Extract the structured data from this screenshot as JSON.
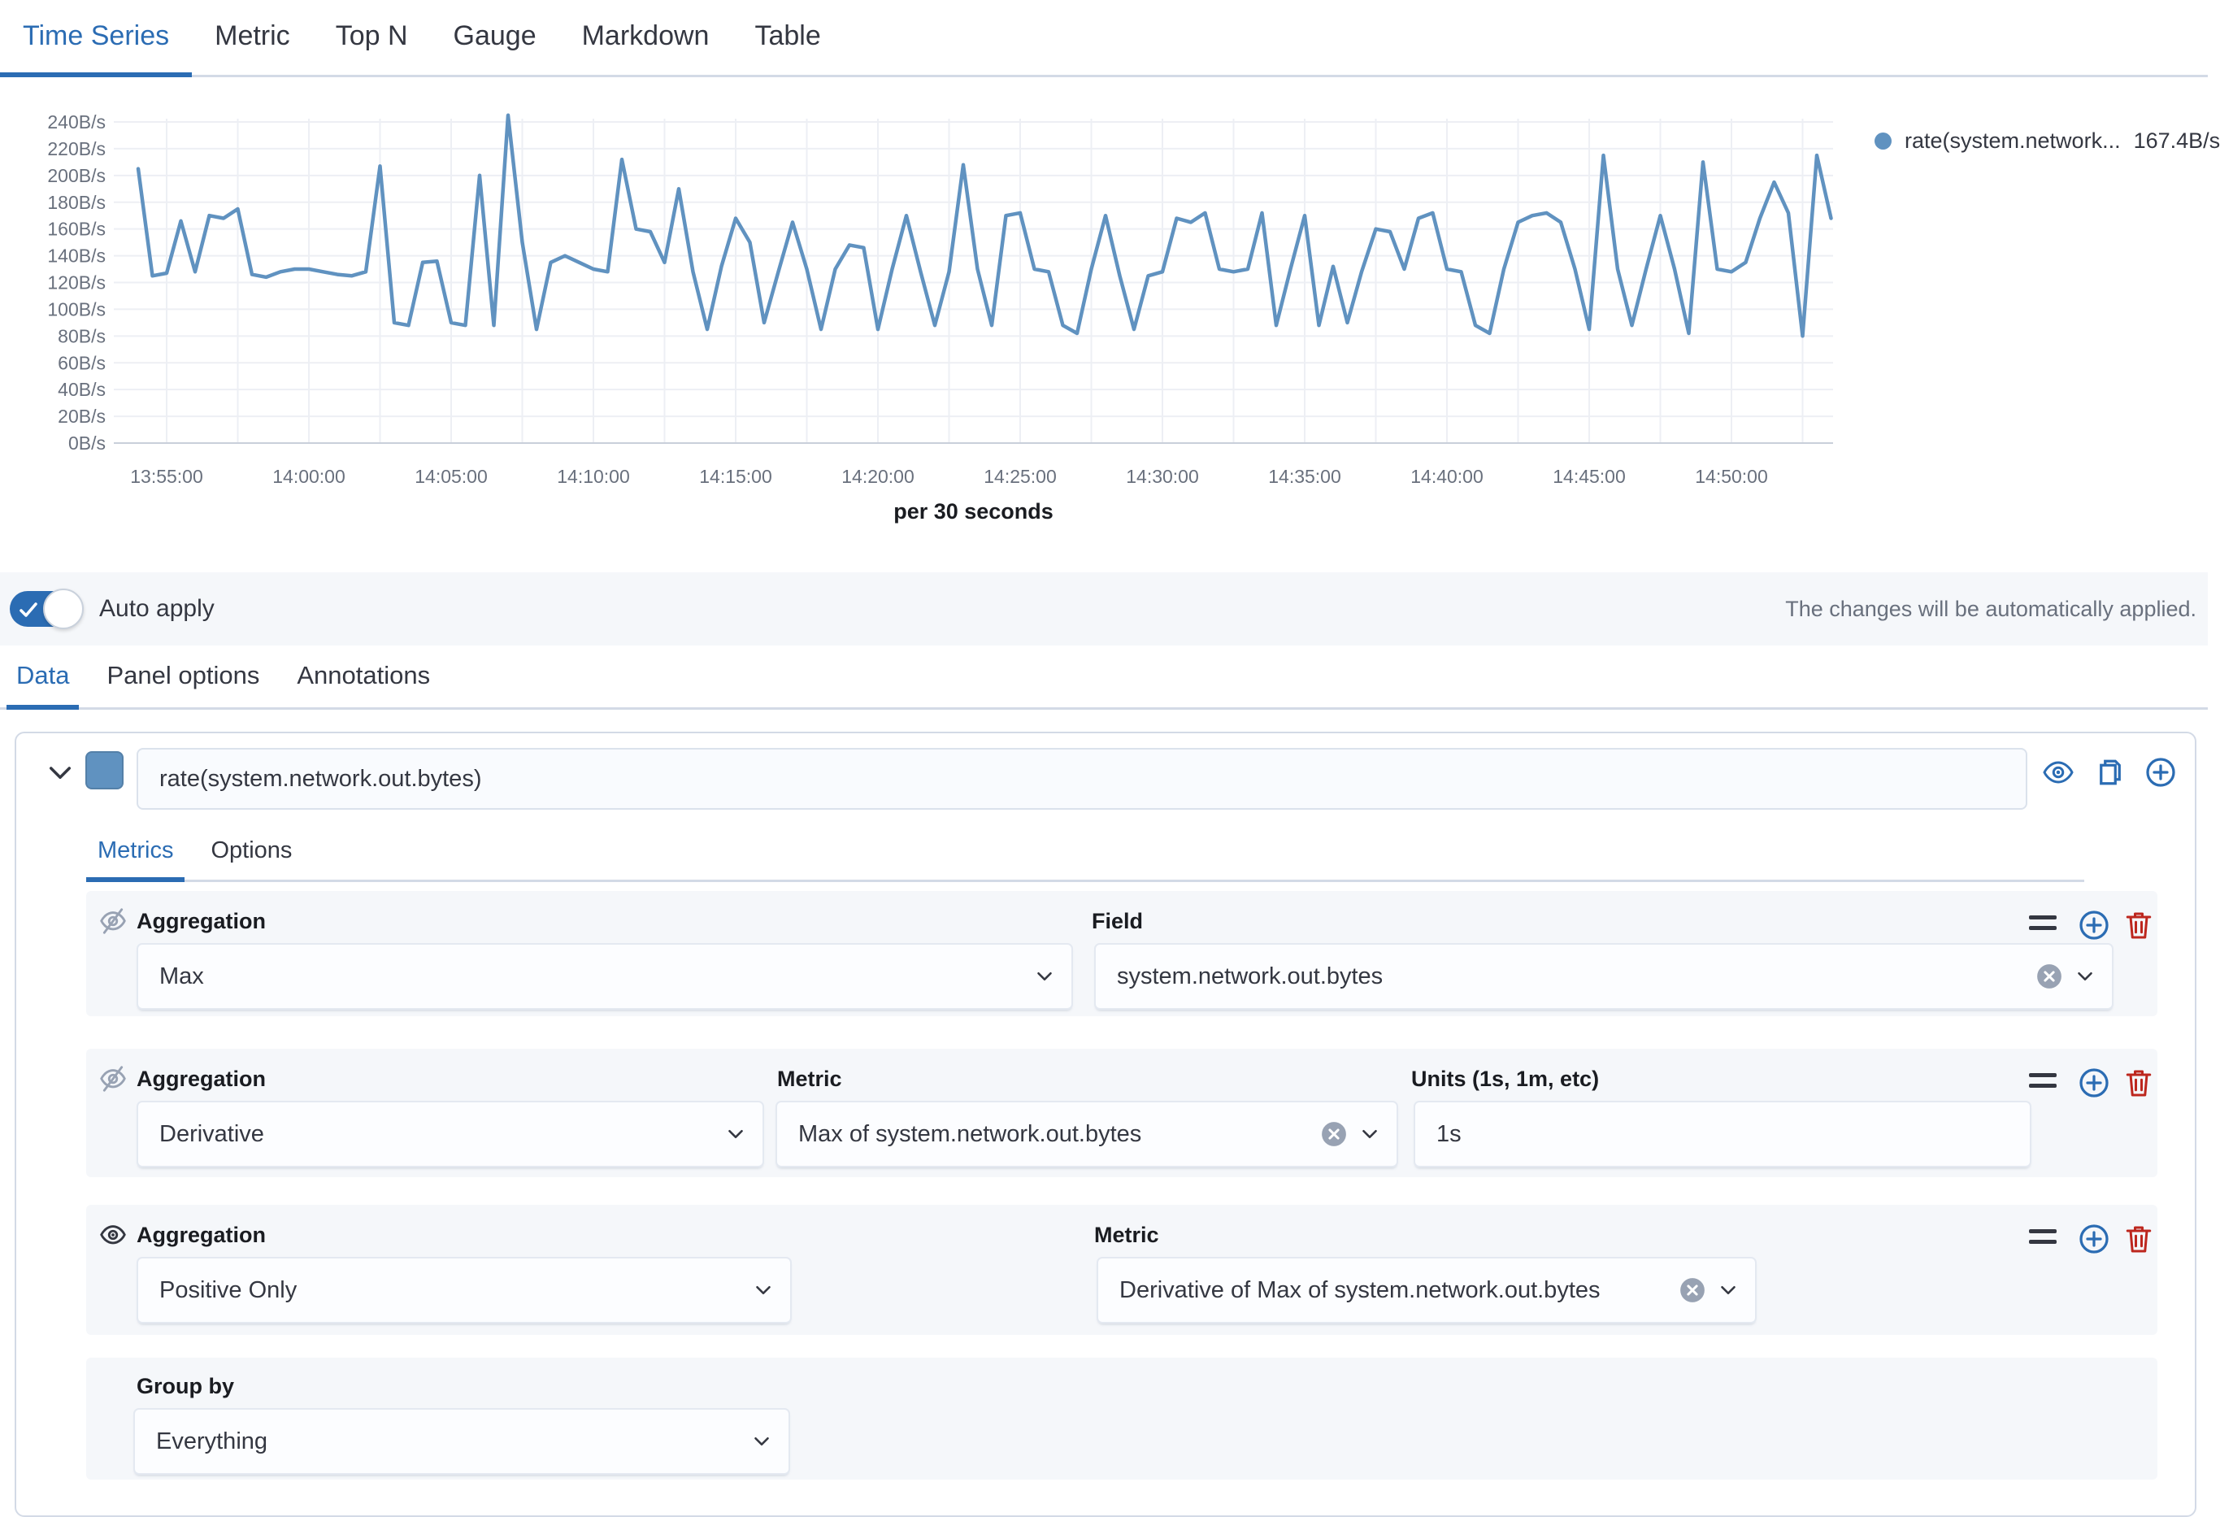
{
  "view_tabs": {
    "items": [
      {
        "label": "Time Series",
        "active": true
      },
      {
        "label": "Metric",
        "active": false
      },
      {
        "label": "Top N",
        "active": false
      },
      {
        "label": "Gauge",
        "active": false
      },
      {
        "label": "Markdown",
        "active": false
      },
      {
        "label": "Table",
        "active": false
      }
    ]
  },
  "chart_data": {
    "type": "line",
    "title": "",
    "xlabel": "per 30 seconds",
    "ylabel": "",
    "y_unit": "B/s",
    "y_ticks": [
      0,
      20,
      40,
      60,
      80,
      100,
      120,
      140,
      160,
      180,
      200,
      220,
      240
    ],
    "ylim": [
      0,
      250
    ],
    "x_ticks": [
      "13:55:00",
      "14:00:00",
      "14:05:00",
      "14:10:00",
      "14:15:00",
      "14:20:00",
      "14:25:00",
      "14:30:00",
      "14:35:00",
      "14:40:00",
      "14:45:00",
      "14:50:00"
    ],
    "x_start": "13:54:00",
    "x_step_seconds": 30,
    "grid": true,
    "legend_position": "right",
    "series": [
      {
        "name": "rate(system.network...",
        "current_value": "167.4B/s",
        "color": "#6092C0",
        "values": [
          205,
          125,
          127,
          166,
          128,
          170,
          168,
          175,
          126,
          124,
          128,
          130,
          130,
          128,
          126,
          125,
          128,
          207,
          90,
          88,
          135,
          136,
          90,
          88,
          200,
          88,
          245,
          150,
          85,
          135,
          140,
          135,
          130,
          128,
          212,
          160,
          158,
          135,
          190,
          128,
          85,
          132,
          168,
          150,
          90,
          128,
          165,
          130,
          85,
          130,
          148,
          146,
          85,
          130,
          170,
          128,
          88,
          128,
          208,
          130,
          88,
          170,
          172,
          130,
          128,
          88,
          82,
          130,
          170,
          125,
          85,
          125,
          128,
          168,
          165,
          172,
          130,
          128,
          130,
          172,
          88,
          130,
          170,
          88,
          132,
          90,
          128,
          160,
          158,
          130,
          168,
          172,
          130,
          128,
          88,
          82,
          130,
          165,
          170,
          172,
          165,
          130,
          85,
          215,
          130,
          88,
          130,
          170,
          130,
          82,
          210,
          130,
          128,
          135,
          168,
          195,
          172,
          80,
          215,
          168
        ]
      }
    ]
  },
  "legend": {
    "label": "rate(system.network...",
    "value": "167.4B/s"
  },
  "auto_apply": {
    "label": "Auto apply",
    "enabled": true,
    "note": "The changes will be automatically applied."
  },
  "editor_tabs": {
    "items": [
      {
        "label": "Data",
        "active": true
      },
      {
        "label": "Panel options",
        "active": false
      },
      {
        "label": "Annotations",
        "active": false
      }
    ]
  },
  "series_editor": {
    "label": "rate(system.network.out.bytes)",
    "color": "#6092C0",
    "tabs": [
      {
        "label": "Metrics",
        "active": true
      },
      {
        "label": "Options",
        "active": false
      }
    ],
    "metrics": [
      {
        "aggregation_label": "Aggregation",
        "aggregation": "Max",
        "field_label": "Field",
        "field": "system.network.out.bytes",
        "visible": false
      },
      {
        "aggregation_label": "Aggregation",
        "aggregation": "Derivative",
        "metric_label": "Metric",
        "metric": "Max of system.network.out.bytes",
        "units_label": "Units (1s, 1m, etc)",
        "units": "1s",
        "visible": false
      },
      {
        "aggregation_label": "Aggregation",
        "aggregation": "Positive Only",
        "metric_label": "Metric",
        "metric": "Derivative of Max of system.network.out.bytes",
        "visible": true
      }
    ],
    "group_by": {
      "label": "Group by",
      "value": "Everything"
    }
  },
  "colors": {
    "accent_blue": "#2b6cb3",
    "series_blue": "#6092C0",
    "danger_red": "#BD271E",
    "border": "#d3dae6",
    "row_bg": "#f5f7fa",
    "muted_text": "#69707d"
  }
}
